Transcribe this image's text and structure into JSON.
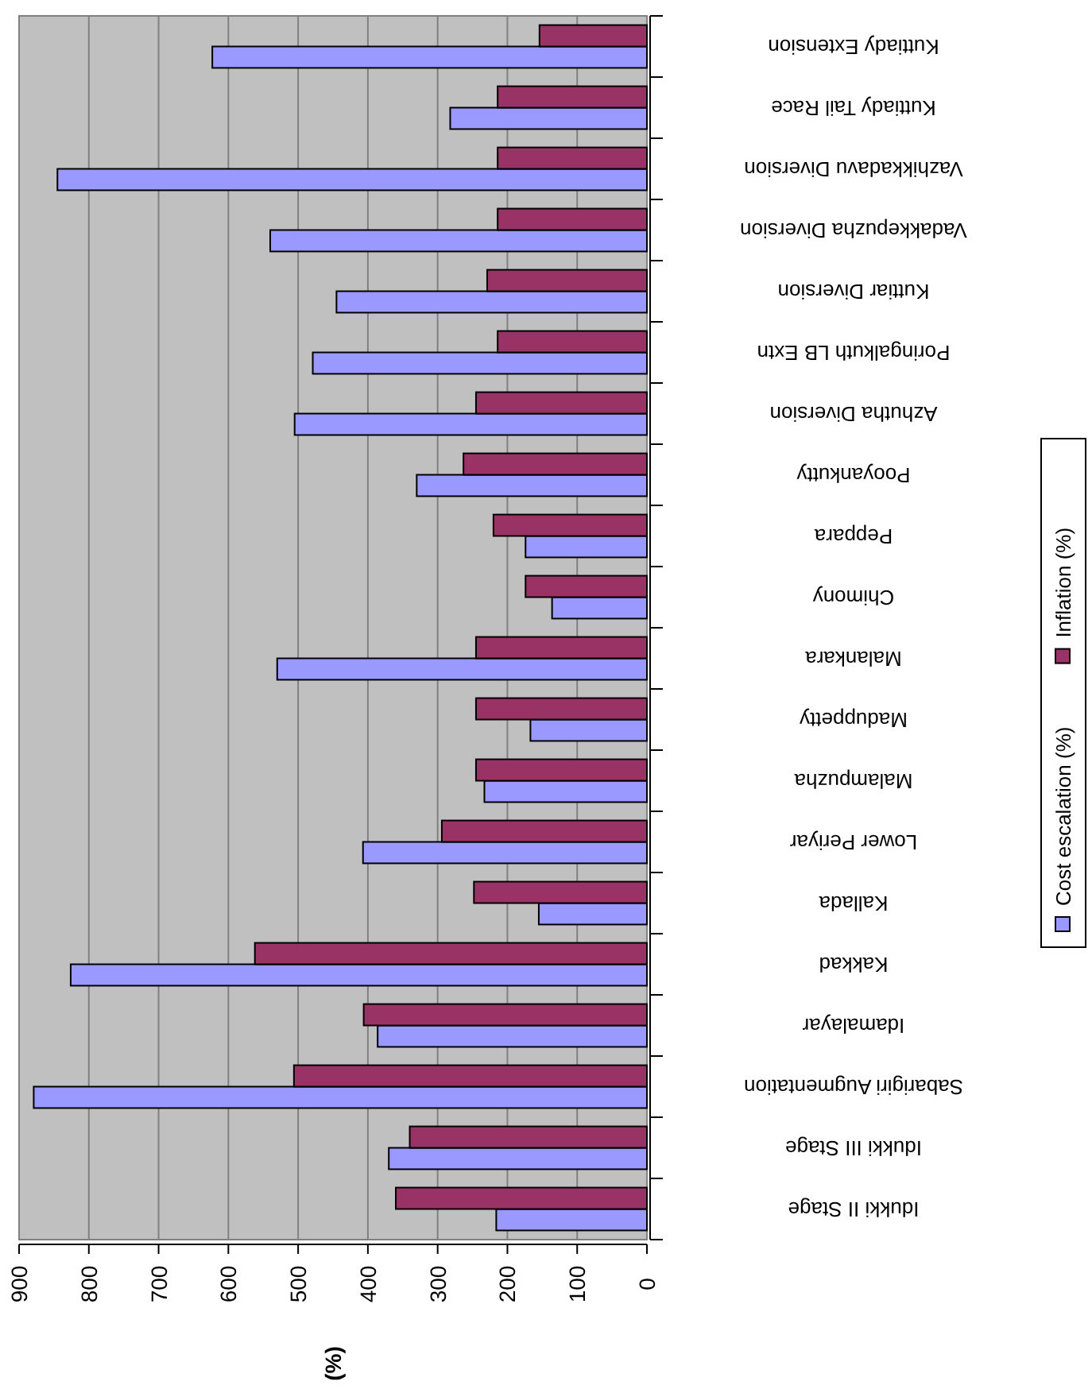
{
  "chart_data": {
    "type": "bar",
    "orientation": "horizontal",
    "ylabel": "(%)",
    "categories": [
      "Kuttiady Extension",
      "Kuttiady Tail Race",
      "Vazhikkadavu Diversion",
      "Vadakkepuzha Diversion",
      "Kuttiar Diversion",
      "Poringalkuth LB Extn",
      "Azhutha Diversion",
      "Pooyankutty",
      "Peppara",
      "Chimony",
      "Malankara",
      "Maduppetty",
      "Malampuzha",
      "Lower Periyar",
      "Kallada",
      "Kakkad",
      "Idamalayar",
      "Sabarigiri Augmentation",
      "Idukki III Stage",
      "Idukki II Stage"
    ],
    "series": [
      {
        "name": "Cost escalation (%)",
        "color": "#9999ff",
        "values": [
          623,
          282,
          845,
          540,
          445,
          479,
          505,
          330,
          174,
          136,
          530,
          167,
          233,
          407,
          155,
          826,
          386,
          879,
          370,
          216
        ]
      },
      {
        "name": "Inflation (%)",
        "color": "#993366",
        "values": [
          154,
          214,
          214,
          214,
          229,
          214,
          245,
          263,
          220,
          174,
          245,
          245,
          245,
          294,
          248,
          562,
          406,
          506,
          340,
          360
        ]
      }
    ],
    "xlim": [
      900,
      0
    ],
    "xticks": [
      0,
      100,
      200,
      300,
      400,
      500,
      600,
      700,
      800,
      900
    ],
    "grid": "x",
    "legend": "right"
  }
}
